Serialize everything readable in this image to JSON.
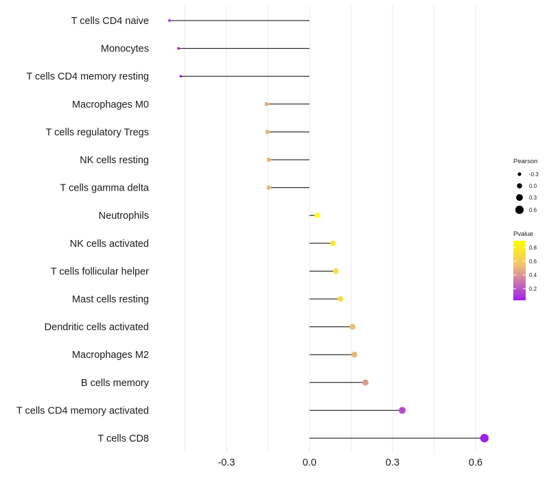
{
  "chart_data": {
    "type": "lollipop",
    "title": "",
    "xlabel": "",
    "ylabel": "",
    "xlim": [
      -0.54,
      0.66
    ],
    "xticks": [
      -0.3,
      0.0,
      0.3,
      0.6
    ],
    "xtick_labels": [
      "-0.3",
      "0.0",
      "0.3",
      "0.6"
    ],
    "minor_grid": [
      -0.45,
      -0.15,
      0.15,
      0.45
    ],
    "categories": [
      "T cells CD4 naive",
      "Monocytes",
      "T cells CD4 memory resting",
      "Macrophages M0",
      "T cells regulatory  Tregs",
      "NK cells resting",
      "T cells gamma delta",
      "Neutrophils",
      "NK cells activated",
      "T cells follicular helper",
      "Mast cells resting",
      "Dendritic cells activated",
      "Macrophages M2",
      "B cells memory",
      "T cells CD4 memory activated",
      "T cells CD8"
    ],
    "pearson": [
      -0.506,
      -0.473,
      -0.465,
      -0.155,
      -0.152,
      -0.147,
      -0.147,
      0.028,
      0.085,
      0.095,
      0.112,
      0.155,
      0.162,
      0.202,
      0.335,
      0.632
    ],
    "pvalue": [
      0.03,
      0.06,
      0.07,
      0.5,
      0.5,
      0.51,
      0.51,
      0.9,
      0.74,
      0.71,
      0.67,
      0.53,
      0.5,
      0.42,
      0.17,
      0.03
    ],
    "size_legend": {
      "title": "Pearson",
      "values": [
        -0.3,
        0.0,
        0.3,
        0.6
      ],
      "labels": [
        "-0.3",
        "0.0",
        "0.3",
        "0.6"
      ]
    },
    "color_legend": {
      "title": "Pvalue",
      "range": [
        0.03,
        0.9
      ],
      "ticks": [
        0.2,
        0.4,
        0.6,
        0.8
      ],
      "labels": [
        "0.2",
        "0.4",
        "0.6",
        "0.8"
      ],
      "colors": [
        "#a020f0",
        "#f2c56e",
        "#ffff00"
      ]
    }
  }
}
